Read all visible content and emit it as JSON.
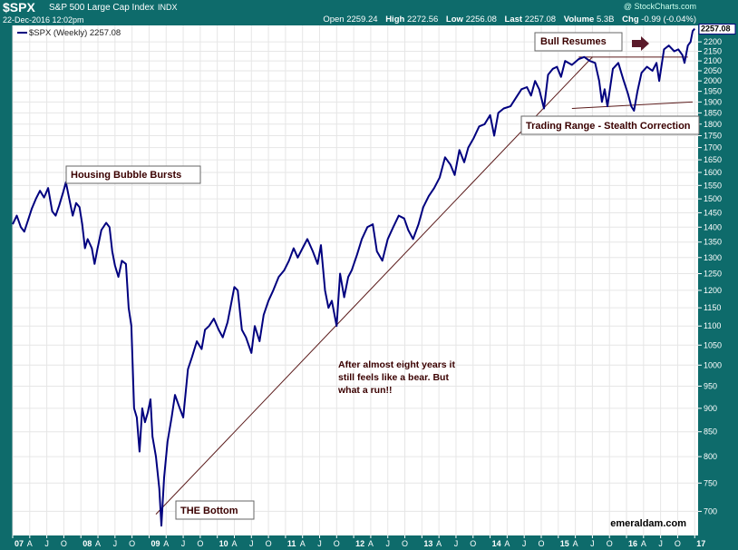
{
  "header": {
    "symbol": "$SPX",
    "name": "S&P 500 Large Cap Index",
    "exchange": "INDX",
    "watermark": "@ StockCharts.com",
    "datetime": "22-Dec-2016 12:02pm",
    "open_label": "Open",
    "open": "2259.24",
    "high_label": "High",
    "high": "2272.56",
    "low_label": "Low",
    "low": "2256.08",
    "last_label": "Last",
    "last": "2257.08",
    "volume_label": "Volume",
    "volume": "5.3B",
    "chg_label": "Chg",
    "chg": "-0.99 (-0.04%)"
  },
  "legend": "$SPX (Weekly) 2257.08",
  "last_value_tag": "2257.08",
  "credit": "emeraldam.com",
  "colors": {
    "frame": "#0e6b6b",
    "series": "#00007f",
    "annotation_line": "#5a1a1a",
    "arrow": "#5a1a2a",
    "annotation_text": "#3a0000"
  },
  "annotations": {
    "housing": "Housing Bubble Bursts",
    "bull": "Bull Resumes",
    "trading": "Trading Range - Stealth Correction",
    "bottom": "THE Bottom",
    "note_lines": [
      "After almost eight years it",
      "still feels like a bear.  But",
      "what a run!!"
    ]
  },
  "chart_data": {
    "type": "line",
    "title": "$SPX (Weekly) 2257.08",
    "xlabel": "",
    "ylabel": "",
    "y_scale": "log",
    "ylim": [
      660,
      2290
    ],
    "xlim": [
      2007.0,
      2017.05
    ],
    "y_ticks": [
      700,
      750,
      800,
      850,
      900,
      950,
      1000,
      1050,
      1100,
      1150,
      1200,
      1250,
      1300,
      1350,
      1400,
      1450,
      1500,
      1550,
      1600,
      1650,
      1700,
      1750,
      1800,
      1850,
      1900,
      1950,
      2000,
      2050,
      2100,
      2150,
      2200
    ],
    "x_ticks": [
      {
        "x": 2007.0,
        "label": "07"
      },
      {
        "x": 2007.25,
        "label": "A"
      },
      {
        "x": 2007.5,
        "label": "J"
      },
      {
        "x": 2007.75,
        "label": "O"
      },
      {
        "x": 2008.0,
        "label": "08"
      },
      {
        "x": 2008.25,
        "label": "A"
      },
      {
        "x": 2008.5,
        "label": "J"
      },
      {
        "x": 2008.75,
        "label": "O"
      },
      {
        "x": 2009.0,
        "label": "09"
      },
      {
        "x": 2009.25,
        "label": "A"
      },
      {
        "x": 2009.5,
        "label": "J"
      },
      {
        "x": 2009.75,
        "label": "O"
      },
      {
        "x": 2010.0,
        "label": "10"
      },
      {
        "x": 2010.25,
        "label": "A"
      },
      {
        "x": 2010.5,
        "label": "J"
      },
      {
        "x": 2010.75,
        "label": "O"
      },
      {
        "x": 2011.0,
        "label": "11"
      },
      {
        "x": 2011.25,
        "label": "A"
      },
      {
        "x": 2011.5,
        "label": "J"
      },
      {
        "x": 2011.75,
        "label": "O"
      },
      {
        "x": 2012.0,
        "label": "12"
      },
      {
        "x": 2012.25,
        "label": "A"
      },
      {
        "x": 2012.5,
        "label": "J"
      },
      {
        "x": 2012.75,
        "label": "O"
      },
      {
        "x": 2013.0,
        "label": "13"
      },
      {
        "x": 2013.25,
        "label": "A"
      },
      {
        "x": 2013.5,
        "label": "J"
      },
      {
        "x": 2013.75,
        "label": "O"
      },
      {
        "x": 2014.0,
        "label": "14"
      },
      {
        "x": 2014.25,
        "label": "A"
      },
      {
        "x": 2014.5,
        "label": "J"
      },
      {
        "x": 2014.75,
        "label": "O"
      },
      {
        "x": 2015.0,
        "label": "15"
      },
      {
        "x": 2015.25,
        "label": "A"
      },
      {
        "x": 2015.5,
        "label": "J"
      },
      {
        "x": 2015.75,
        "label": "O"
      },
      {
        "x": 2016.0,
        "label": "16"
      },
      {
        "x": 2016.25,
        "label": "A"
      },
      {
        "x": 2016.5,
        "label": "J"
      },
      {
        "x": 2016.75,
        "label": "O"
      },
      {
        "x": 2017.0,
        "label": "17"
      }
    ],
    "grid": true,
    "legend_position": "top-left",
    "series": [
      {
        "name": "$SPX (Weekly)",
        "points": [
          [
            2007.0,
            1410
          ],
          [
            2007.06,
            1440
          ],
          [
            2007.12,
            1400
          ],
          [
            2007.17,
            1385
          ],
          [
            2007.22,
            1420
          ],
          [
            2007.28,
            1465
          ],
          [
            2007.34,
            1500
          ],
          [
            2007.4,
            1530
          ],
          [
            2007.46,
            1505
          ],
          [
            2007.52,
            1540
          ],
          [
            2007.58,
            1455
          ],
          [
            2007.63,
            1440
          ],
          [
            2007.68,
            1475
          ],
          [
            2007.74,
            1525
          ],
          [
            2007.78,
            1562
          ],
          [
            2007.83,
            1500
          ],
          [
            2007.88,
            1440
          ],
          [
            2007.93,
            1485
          ],
          [
            2007.98,
            1470
          ],
          [
            2008.02,
            1410
          ],
          [
            2008.06,
            1330
          ],
          [
            2008.1,
            1360
          ],
          [
            2008.16,
            1330
          ],
          [
            2008.2,
            1280
          ],
          [
            2008.24,
            1325
          ],
          [
            2008.3,
            1390
          ],
          [
            2008.37,
            1415
          ],
          [
            2008.42,
            1400
          ],
          [
            2008.46,
            1320
          ],
          [
            2008.5,
            1275
          ],
          [
            2008.55,
            1240
          ],
          [
            2008.6,
            1290
          ],
          [
            2008.66,
            1280
          ],
          [
            2008.7,
            1150
          ],
          [
            2008.74,
            1100
          ],
          [
            2008.78,
            900
          ],
          [
            2008.82,
            880
          ],
          [
            2008.86,
            810
          ],
          [
            2008.9,
            900
          ],
          [
            2008.94,
            870
          ],
          [
            2008.98,
            890
          ],
          [
            2009.02,
            920
          ],
          [
            2009.05,
            840
          ],
          [
            2009.1,
            800
          ],
          [
            2009.15,
            740
          ],
          [
            2009.18,
            676
          ],
          [
            2009.22,
            760
          ],
          [
            2009.27,
            830
          ],
          [
            2009.33,
            880
          ],
          [
            2009.38,
            930
          ],
          [
            2009.45,
            900
          ],
          [
            2009.5,
            880
          ],
          [
            2009.57,
            990
          ],
          [
            2009.63,
            1020
          ],
          [
            2009.7,
            1060
          ],
          [
            2009.77,
            1040
          ],
          [
            2009.82,
            1090
          ],
          [
            2009.88,
            1100
          ],
          [
            2009.95,
            1120
          ],
          [
            2010.02,
            1090
          ],
          [
            2010.08,
            1070
          ],
          [
            2010.15,
            1110
          ],
          [
            2010.25,
            1210
          ],
          [
            2010.3,
            1200
          ],
          [
            2010.36,
            1090
          ],
          [
            2010.42,
            1070
          ],
          [
            2010.5,
            1030
          ],
          [
            2010.55,
            1100
          ],
          [
            2010.62,
            1060
          ],
          [
            2010.68,
            1130
          ],
          [
            2010.75,
            1170
          ],
          [
            2010.82,
            1200
          ],
          [
            2010.9,
            1240
          ],
          [
            2010.98,
            1260
          ],
          [
            2011.05,
            1290
          ],
          [
            2011.12,
            1330
          ],
          [
            2011.18,
            1300
          ],
          [
            2011.25,
            1330
          ],
          [
            2011.32,
            1360
          ],
          [
            2011.4,
            1320
          ],
          [
            2011.47,
            1280
          ],
          [
            2011.52,
            1340
          ],
          [
            2011.58,
            1200
          ],
          [
            2011.63,
            1150
          ],
          [
            2011.68,
            1170
          ],
          [
            2011.75,
            1100
          ],
          [
            2011.8,
            1250
          ],
          [
            2011.86,
            1180
          ],
          [
            2011.92,
            1240
          ],
          [
            2011.97,
            1260
          ],
          [
            2012.05,
            1310
          ],
          [
            2012.12,
            1360
          ],
          [
            2012.2,
            1400
          ],
          [
            2012.28,
            1410
          ],
          [
            2012.34,
            1320
          ],
          [
            2012.42,
            1290
          ],
          [
            2012.5,
            1360
          ],
          [
            2012.58,
            1400
          ],
          [
            2012.66,
            1440
          ],
          [
            2012.74,
            1430
          ],
          [
            2012.8,
            1390
          ],
          [
            2012.87,
            1360
          ],
          [
            2012.95,
            1410
          ],
          [
            2013.02,
            1470
          ],
          [
            2013.1,
            1510
          ],
          [
            2013.18,
            1540
          ],
          [
            2013.26,
            1580
          ],
          [
            2013.34,
            1660
          ],
          [
            2013.42,
            1630
          ],
          [
            2013.48,
            1590
          ],
          [
            2013.55,
            1690
          ],
          [
            2013.62,
            1640
          ],
          [
            2013.68,
            1700
          ],
          [
            2013.76,
            1740
          ],
          [
            2013.84,
            1790
          ],
          [
            2013.92,
            1800
          ],
          [
            2014.0,
            1840
          ],
          [
            2014.06,
            1750
          ],
          [
            2014.12,
            1850
          ],
          [
            2014.2,
            1870
          ],
          [
            2014.3,
            1880
          ],
          [
            2014.38,
            1920
          ],
          [
            2014.46,
            1960
          ],
          [
            2014.54,
            1970
          ],
          [
            2014.6,
            1930
          ],
          [
            2014.66,
            2000
          ],
          [
            2014.72,
            1960
          ],
          [
            2014.79,
            1870
          ],
          [
            2014.85,
            2030
          ],
          [
            2014.92,
            2060
          ],
          [
            2014.98,
            2070
          ],
          [
            2015.04,
            2020
          ],
          [
            2015.1,
            2100
          ],
          [
            2015.2,
            2080
          ],
          [
            2015.3,
            2110
          ],
          [
            2015.38,
            2120
          ],
          [
            2015.46,
            2100
          ],
          [
            2015.54,
            2090
          ],
          [
            2015.6,
            2000
          ],
          [
            2015.64,
            1900
          ],
          [
            2015.68,
            1960
          ],
          [
            2015.72,
            1880
          ],
          [
            2015.8,
            2060
          ],
          [
            2015.88,
            2090
          ],
          [
            2015.95,
            2010
          ],
          [
            2016.02,
            1940
          ],
          [
            2016.07,
            1880
          ],
          [
            2016.11,
            1860
          ],
          [
            2016.16,
            1950
          ],
          [
            2016.22,
            2040
          ],
          [
            2016.3,
            2070
          ],
          [
            2016.38,
            2050
          ],
          [
            2016.44,
            2090
          ],
          [
            2016.48,
            2000
          ],
          [
            2016.55,
            2160
          ],
          [
            2016.62,
            2180
          ],
          [
            2016.7,
            2150
          ],
          [
            2016.76,
            2160
          ],
          [
            2016.82,
            2130
          ],
          [
            2016.85,
            2090
          ],
          [
            2016.9,
            2180
          ],
          [
            2016.94,
            2200
          ],
          [
            2016.97,
            2259
          ],
          [
            2017.0,
            2272
          ]
        ]
      }
    ]
  }
}
